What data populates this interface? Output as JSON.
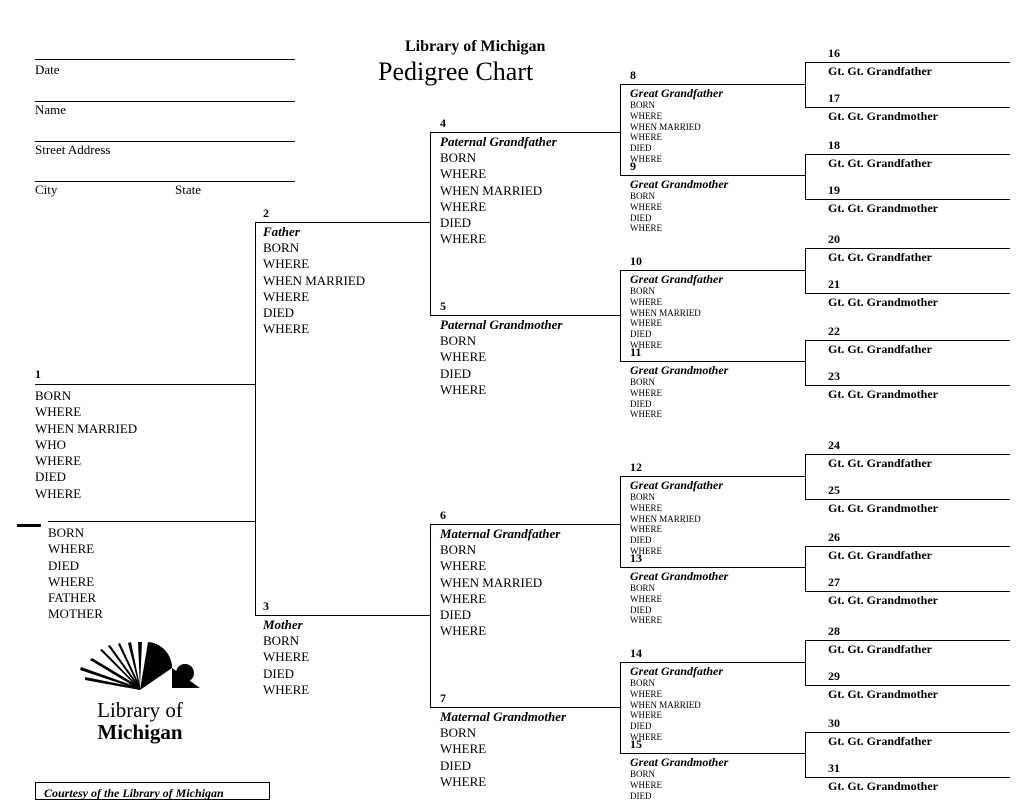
{
  "header": {
    "org": "Library of Michigan",
    "title": "Pedigree Chart",
    "fields": {
      "date": "Date",
      "name": "Name",
      "address": "Street Address",
      "city": "City",
      "state": "State"
    }
  },
  "details_full": [
    "BORN",
    "WHERE",
    "WHEN MARRIED",
    "WHO",
    "WHERE",
    "DIED",
    "WHERE"
  ],
  "details_parent": [
    "BORN",
    "WHERE",
    "WHEN MARRIED",
    "WHERE",
    "DIED",
    "WHERE"
  ],
  "details_short": [
    "BORN",
    "WHERE",
    "DIED",
    "WHERE"
  ],
  "details_spouse": [
    "BORN",
    "WHERE",
    "DIED",
    "WHERE",
    "FATHER",
    "MOTHER"
  ],
  "gen1": {
    "n": "1"
  },
  "gen2": {
    "p2": {
      "n": "2",
      "role": "Father"
    },
    "p3": {
      "n": "3",
      "role": "Mother"
    }
  },
  "gen3": {
    "p4": {
      "n": "4",
      "role": "Paternal Grandfather"
    },
    "p5": {
      "n": "5",
      "role": "Paternal Grandmother"
    },
    "p6": {
      "n": "6",
      "role": "Maternal Grandfather"
    },
    "p7": {
      "n": "7",
      "role": "Maternal Grandmother"
    }
  },
  "gen4": {
    "p8": {
      "n": "8",
      "role": "Great Grandfather"
    },
    "p9": {
      "n": "9",
      "role": "Great Grandmother"
    },
    "p10": {
      "n": "10",
      "role": "Great Grandfather"
    },
    "p11": {
      "n": "11",
      "role": "Great Grandmother"
    },
    "p12": {
      "n": "12",
      "role": "Great Grandfather"
    },
    "p13": {
      "n": "13",
      "role": "Great Grandmother"
    },
    "p14": {
      "n": "14",
      "role": "Great Grandfather"
    },
    "p15": {
      "n": "15",
      "role": "Great Grandmother"
    }
  },
  "gen5": {
    "p16": {
      "n": "16",
      "role": "Gt. Gt. Grandfather"
    },
    "p17": {
      "n": "17",
      "role": "Gt. Gt. Grandmother"
    },
    "p18": {
      "n": "18",
      "role": "Gt. Gt. Grandfather"
    },
    "p19": {
      "n": "19",
      "role": "Gt. Gt. Grandmother"
    },
    "p20": {
      "n": "20",
      "role": "Gt. Gt. Grandfather"
    },
    "p21": {
      "n": "21",
      "role": "Gt. Gt. Grandmother"
    },
    "p22": {
      "n": "22",
      "role": "Gt. Gt. Grandfather"
    },
    "p23": {
      "n": "23",
      "role": "Gt. Gt. Grandmother"
    },
    "p24": {
      "n": "24",
      "role": "Gt. Gt. Grandfather"
    },
    "p25": {
      "n": "25",
      "role": "Gt. Gt. Grandmother"
    },
    "p26": {
      "n": "26",
      "role": "Gt. Gt. Grandfather"
    },
    "p27": {
      "n": "27",
      "role": "Gt. Gt. Grandmother"
    },
    "p28": {
      "n": "28",
      "role": "Gt. Gt. Grandfather"
    },
    "p29": {
      "n": "29",
      "role": "Gt. Gt. Grandmother"
    },
    "p30": {
      "n": "30",
      "role": "Gt. Gt. Grandfather"
    },
    "p31": {
      "n": "31",
      "role": "Gt. Gt. Grandmother"
    }
  },
  "logo": {
    "line1": "Library of",
    "line2": "Michigan"
  },
  "footer": "Courtesy of the Library of Michigan"
}
